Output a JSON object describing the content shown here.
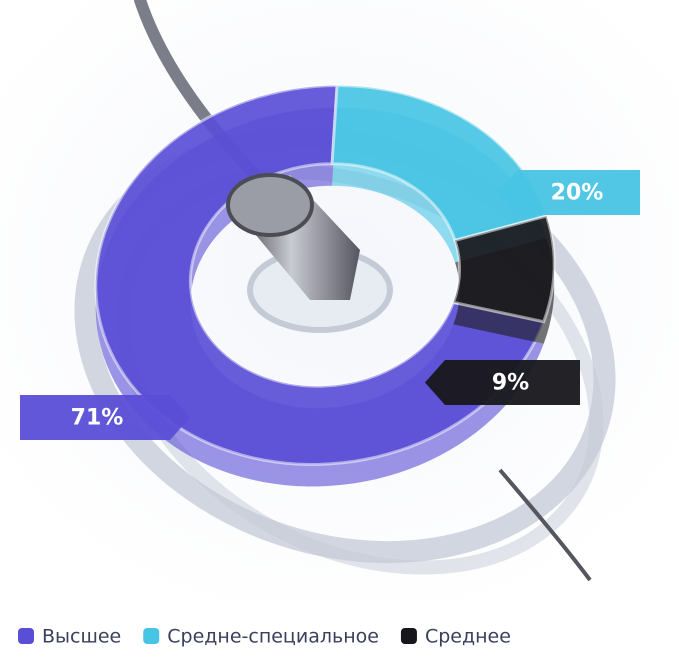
{
  "chart_data": {
    "type": "pie",
    "categories": [
      "Высшее",
      "Средне-специальное",
      "Среднее"
    ],
    "values": [
      71,
      20,
      9
    ],
    "value_labels": [
      "71%",
      "20%",
      "9%"
    ],
    "colors": [
      "#5a4ed6",
      "#48c4e4",
      "#17171b"
    ]
  }
}
